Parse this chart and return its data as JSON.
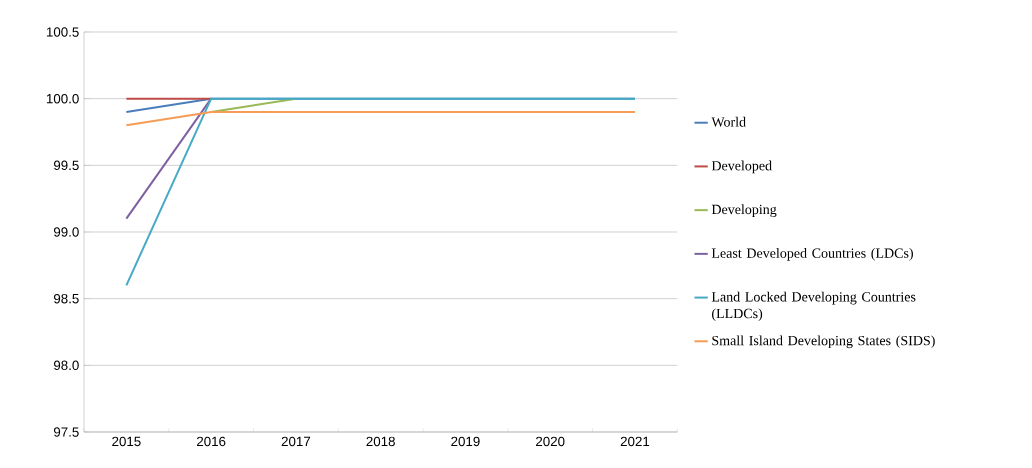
{
  "chart_data": {
    "type": "line",
    "categories": [
      "2015",
      "2016",
      "2017",
      "2018",
      "2019",
      "2020",
      "2021"
    ],
    "ylim": [
      97.5,
      100.5
    ],
    "yticks": [
      {
        "value": 97.5,
        "label": "97.5"
      },
      {
        "value": 98,
        "label": "98.0"
      },
      {
        "value": 98.5,
        "label": "98.5"
      },
      {
        "value": 99,
        "label": "99.0"
      },
      {
        "value": 99.5,
        "label": "99.5"
      },
      {
        "value": 100,
        "label": "100.0"
      },
      {
        "value": 100.5,
        "label": "100.5"
      }
    ],
    "grid": "y",
    "legend": "right",
    "marker": "none",
    "series": [
      {
        "name": "World",
        "color": "#4a7ebb",
        "values": [
          99.9,
          100,
          100,
          100,
          100,
          100,
          100
        ]
      },
      {
        "name": "Developed",
        "color": "#be4b48",
        "values": [
          100,
          100,
          null,
          null,
          null,
          null,
          null
        ]
      },
      {
        "name": "Developing",
        "color": "#98b954",
        "values": [
          null,
          99.9,
          100,
          null,
          null,
          null,
          null
        ]
      },
      {
        "name": "Least Developed Countries (LDCs)",
        "color": "#7d60a0",
        "values": [
          99.1,
          100,
          null,
          null,
          null,
          null,
          null
        ]
      },
      {
        "name": "Land Locked Developing Countries (LLDCs)",
        "color": "#46aac5",
        "values": [
          98.6,
          100,
          100,
          100,
          100,
          100,
          100
        ]
      },
      {
        "name": "Small Island Developing States (SIDS)",
        "color": "#f59d56",
        "values": [
          99.8,
          99.9,
          99.9,
          99.9,
          99.9,
          99.9,
          99.9
        ]
      }
    ]
  }
}
